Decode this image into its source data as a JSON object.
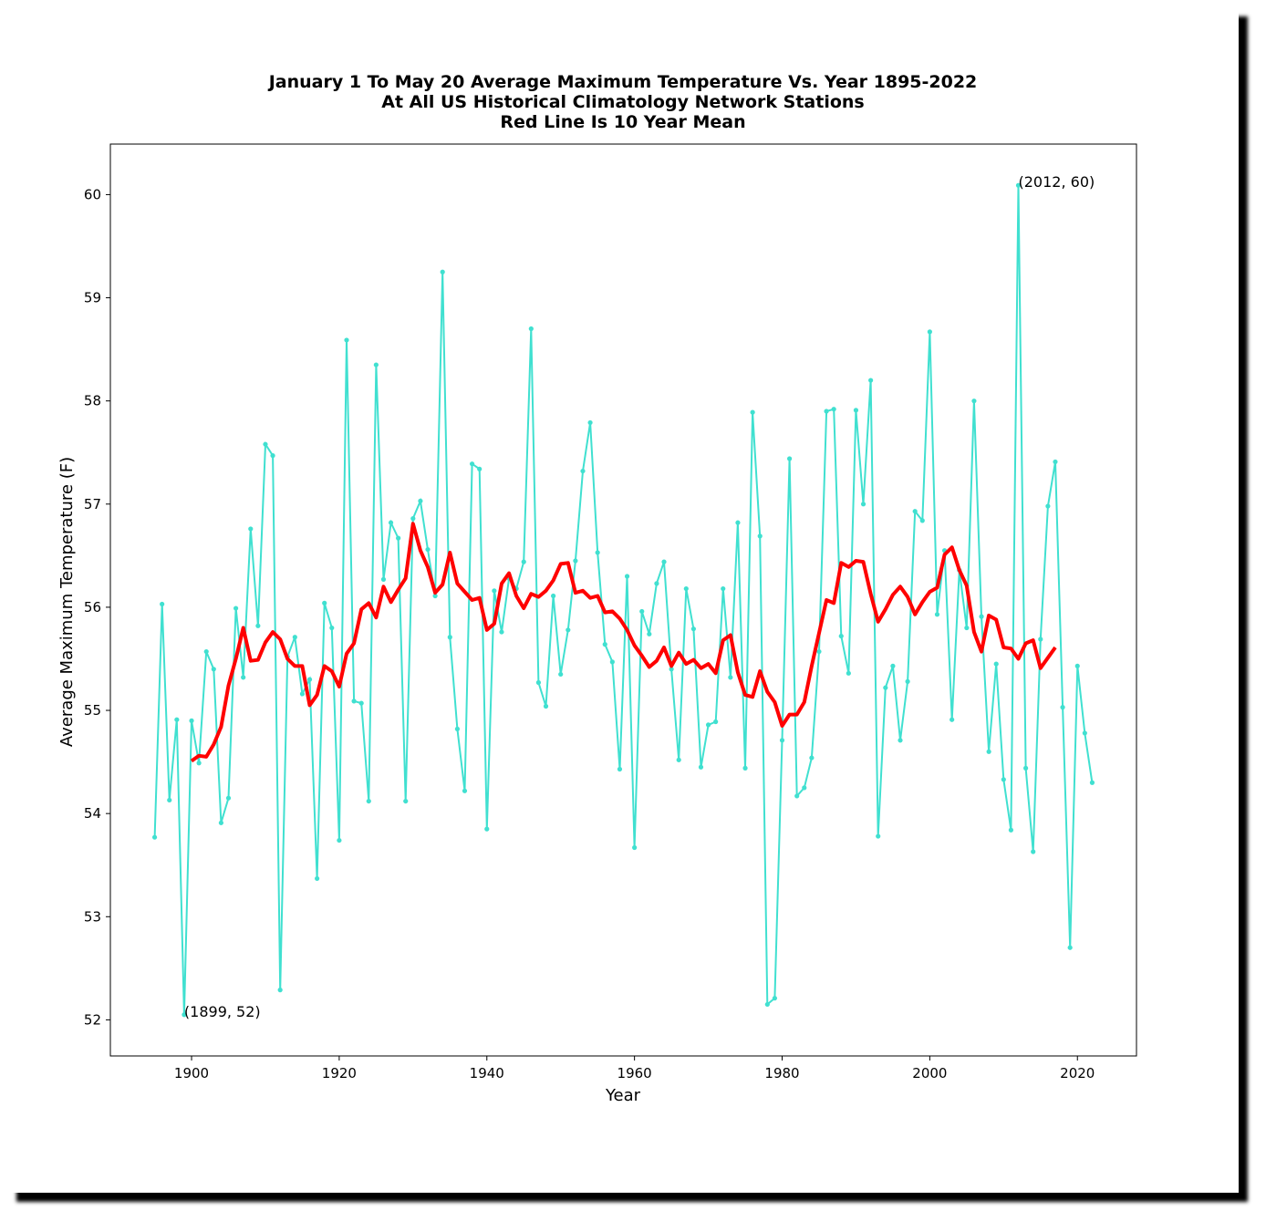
{
  "chart_data": {
    "type": "line",
    "title": [
      "January 1 To May 20 Average Maximum Temperature Vs. Year 1895-2022",
      "At All US Historical Climatology Network Stations",
      "Red Line Is 10 Year Mean"
    ],
    "xlabel": "Year",
    "ylabel": "Average Maximum Temperature (F)",
    "xlim": [
      1889,
      2028
    ],
    "ylim": [
      51.65,
      60.49
    ],
    "xticks": [
      1900,
      1920,
      1940,
      1960,
      1980,
      2000,
      2020
    ],
    "yticks": [
      52,
      53,
      54,
      55,
      56,
      57,
      58,
      59,
      60
    ],
    "grid": false,
    "colors": {
      "annual": "#40e0d0",
      "mean": "#ff0000"
    },
    "series": [
      {
        "values": [
          [
            1895,
            53.77
          ],
          [
            1896,
            56.03
          ],
          [
            1897,
            54.13
          ],
          [
            1898,
            54.91
          ],
          [
            1899,
            52.05
          ],
          [
            1900,
            54.9
          ],
          [
            1901,
            54.49
          ],
          [
            1902,
            55.57
          ],
          [
            1903,
            55.4
          ],
          [
            1904,
            53.91
          ],
          [
            1905,
            54.15
          ],
          [
            1906,
            55.99
          ],
          [
            1907,
            55.32
          ],
          [
            1908,
            56.76
          ],
          [
            1909,
            55.82
          ],
          [
            1910,
            57.58
          ],
          [
            1911,
            57.47
          ],
          [
            1912,
            52.29
          ],
          [
            1913,
            55.52
          ],
          [
            1914,
            55.71
          ],
          [
            1915,
            55.16
          ],
          [
            1916,
            55.3
          ],
          [
            1917,
            53.37
          ],
          [
            1918,
            56.04
          ],
          [
            1919,
            55.8
          ],
          [
            1920,
            53.74
          ],
          [
            1921,
            58.59
          ],
          [
            1922,
            55.09
          ],
          [
            1923,
            55.07
          ],
          [
            1924,
            54.12
          ],
          [
            1925,
            58.35
          ],
          [
            1926,
            56.27
          ],
          [
            1927,
            56.82
          ],
          [
            1928,
            56.67
          ],
          [
            1929,
            54.12
          ],
          [
            1930,
            56.86
          ],
          [
            1931,
            57.03
          ],
          [
            1932,
            56.56
          ],
          [
            1933,
            56.11
          ],
          [
            1934,
            59.25
          ],
          [
            1935,
            55.71
          ],
          [
            1936,
            54.82
          ],
          [
            1937,
            54.22
          ],
          [
            1938,
            57.39
          ],
          [
            1939,
            57.34
          ],
          [
            1940,
            53.85
          ],
          [
            1941,
            56.16
          ],
          [
            1942,
            55.76
          ],
          [
            1943,
            56.28
          ],
          [
            1944,
            56.18
          ],
          [
            1945,
            56.44
          ],
          [
            1946,
            58.7
          ],
          [
            1947,
            55.27
          ],
          [
            1948,
            55.04
          ],
          [
            1949,
            56.11
          ],
          [
            1950,
            55.35
          ],
          [
            1951,
            55.78
          ],
          [
            1952,
            56.45
          ],
          [
            1953,
            57.32
          ],
          [
            1954,
            57.79
          ],
          [
            1955,
            56.53
          ],
          [
            1956,
            55.64
          ],
          [
            1957,
            55.47
          ],
          [
            1958,
            54.43
          ],
          [
            1959,
            56.3
          ],
          [
            1960,
            53.67
          ],
          [
            1961,
            55.96
          ],
          [
            1962,
            55.74
          ],
          [
            1963,
            56.23
          ],
          [
            1964,
            56.44
          ],
          [
            1965,
            55.4
          ],
          [
            1966,
            54.52
          ],
          [
            1967,
            56.18
          ],
          [
            1968,
            55.79
          ],
          [
            1969,
            54.45
          ],
          [
            1970,
            54.86
          ],
          [
            1971,
            54.89
          ],
          [
            1972,
            56.18
          ],
          [
            1973,
            55.32
          ],
          [
            1974,
            56.82
          ],
          [
            1975,
            54.44
          ],
          [
            1976,
            57.89
          ],
          [
            1977,
            56.69
          ],
          [
            1978,
            52.15
          ],
          [
            1979,
            52.21
          ],
          [
            1980,
            54.71
          ],
          [
            1981,
            57.44
          ],
          [
            1982,
            54.17
          ],
          [
            1983,
            54.25
          ],
          [
            1984,
            54.54
          ],
          [
            1985,
            55.57
          ],
          [
            1986,
            57.9
          ],
          [
            1987,
            57.92
          ],
          [
            1988,
            55.72
          ],
          [
            1989,
            55.36
          ],
          [
            1990,
            57.91
          ],
          [
            1991,
            57.0
          ],
          [
            1992,
            58.2
          ],
          [
            1993,
            53.78
          ],
          [
            1994,
            55.22
          ],
          [
            1995,
            55.43
          ],
          [
            1996,
            54.71
          ],
          [
            1997,
            55.28
          ],
          [
            1998,
            56.93
          ],
          [
            1999,
            56.84
          ],
          [
            2000,
            58.67
          ],
          [
            2001,
            55.93
          ],
          [
            2002,
            56.55
          ],
          [
            2003,
            54.91
          ],
          [
            2004,
            56.36
          ],
          [
            2005,
            55.8
          ],
          [
            2006,
            58.0
          ],
          [
            2007,
            55.91
          ],
          [
            2008,
            54.6
          ],
          [
            2009,
            55.45
          ],
          [
            2010,
            54.33
          ],
          [
            2011,
            53.84
          ],
          [
            2012,
            60.09
          ],
          [
            2013,
            54.44
          ],
          [
            2014,
            53.63
          ],
          [
            2015,
            55.69
          ],
          [
            2016,
            56.98
          ],
          [
            2017,
            57.41
          ],
          [
            2018,
            55.03
          ],
          [
            2019,
            52.7
          ],
          [
            2020,
            55.43
          ],
          [
            2021,
            54.78
          ],
          [
            2022,
            54.3
          ]
        ]
      },
      {
        "values": [
          [
            1900,
            54.51
          ],
          [
            1901,
            54.56
          ],
          [
            1902,
            54.55
          ],
          [
            1903,
            54.67
          ],
          [
            1904,
            54.84
          ],
          [
            1905,
            55.24
          ],
          [
            1906,
            55.5
          ],
          [
            1907,
            55.8
          ],
          [
            1908,
            55.48
          ],
          [
            1909,
            55.49
          ],
          [
            1910,
            55.66
          ],
          [
            1911,
            55.76
          ],
          [
            1912,
            55.69
          ],
          [
            1913,
            55.5
          ],
          [
            1914,
            55.43
          ],
          [
            1915,
            55.43
          ],
          [
            1916,
            55.05
          ],
          [
            1917,
            55.15
          ],
          [
            1918,
            55.43
          ],
          [
            1919,
            55.38
          ],
          [
            1920,
            55.23
          ],
          [
            1921,
            55.55
          ],
          [
            1922,
            55.65
          ],
          [
            1923,
            55.98
          ],
          [
            1924,
            56.04
          ],
          [
            1925,
            55.9
          ],
          [
            1926,
            56.2
          ],
          [
            1927,
            56.05
          ],
          [
            1928,
            56.17
          ],
          [
            1929,
            56.28
          ],
          [
            1930,
            56.81
          ],
          [
            1931,
            56.55
          ],
          [
            1932,
            56.39
          ],
          [
            1933,
            56.14
          ],
          [
            1934,
            56.22
          ],
          [
            1935,
            56.53
          ],
          [
            1936,
            56.23
          ],
          [
            1937,
            56.15
          ],
          [
            1938,
            56.07
          ],
          [
            1939,
            56.09
          ],
          [
            1940,
            55.78
          ],
          [
            1941,
            55.84
          ],
          [
            1942,
            56.23
          ],
          [
            1943,
            56.33
          ],
          [
            1944,
            56.11
          ],
          [
            1945,
            55.99
          ],
          [
            1946,
            56.13
          ],
          [
            1947,
            56.1
          ],
          [
            1948,
            56.16
          ],
          [
            1949,
            56.26
          ],
          [
            1950,
            56.42
          ],
          [
            1951,
            56.43
          ],
          [
            1952,
            56.14
          ],
          [
            1953,
            56.16
          ],
          [
            1954,
            56.09
          ],
          [
            1955,
            56.11
          ],
          [
            1956,
            55.95
          ],
          [
            1957,
            55.96
          ],
          [
            1958,
            55.89
          ],
          [
            1959,
            55.78
          ],
          [
            1960,
            55.63
          ],
          [
            1961,
            55.53
          ],
          [
            1962,
            55.42
          ],
          [
            1963,
            55.48
          ],
          [
            1964,
            55.61
          ],
          [
            1965,
            55.43
          ],
          [
            1966,
            55.56
          ],
          [
            1967,
            55.45
          ],
          [
            1968,
            55.49
          ],
          [
            1969,
            55.41
          ],
          [
            1970,
            55.45
          ],
          [
            1971,
            55.36
          ],
          [
            1972,
            55.68
          ],
          [
            1973,
            55.73
          ],
          [
            1974,
            55.37
          ],
          [
            1975,
            55.15
          ],
          [
            1976,
            55.13
          ],
          [
            1977,
            55.38
          ],
          [
            1978,
            55.18
          ],
          [
            1979,
            55.08
          ],
          [
            1980,
            54.85
          ],
          [
            1981,
            54.96
          ],
          [
            1982,
            54.96
          ],
          [
            1983,
            55.08
          ],
          [
            1984,
            55.43
          ],
          [
            1985,
            55.75
          ],
          [
            1986,
            56.07
          ],
          [
            1987,
            56.04
          ],
          [
            1988,
            56.43
          ],
          [
            1989,
            56.39
          ],
          [
            1990,
            56.45
          ],
          [
            1991,
            56.44
          ],
          [
            1992,
            56.13
          ],
          [
            1993,
            55.86
          ],
          [
            1994,
            55.98
          ],
          [
            1995,
            56.12
          ],
          [
            1996,
            56.2
          ],
          [
            1997,
            56.1
          ],
          [
            1998,
            55.93
          ],
          [
            1999,
            56.05
          ],
          [
            2000,
            56.15
          ],
          [
            2001,
            56.19
          ],
          [
            2002,
            56.51
          ],
          [
            2003,
            56.58
          ],
          [
            2004,
            56.36
          ],
          [
            2005,
            56.21
          ],
          [
            2006,
            55.76
          ],
          [
            2007,
            55.57
          ],
          [
            2008,
            55.92
          ],
          [
            2009,
            55.88
          ],
          [
            2010,
            55.61
          ],
          [
            2011,
            55.6
          ],
          [
            2012,
            55.5
          ],
          [
            2013,
            55.65
          ],
          [
            2014,
            55.68
          ],
          [
            2015,
            55.41
          ],
          [
            2016,
            55.51
          ],
          [
            2017,
            55.61
          ]
        ]
      }
    ],
    "annotations": [
      {
        "text": "(1899, 52)",
        "x": 1899,
        "y": 52.05
      },
      {
        "text": "(2012, 60)",
        "x": 2012,
        "y": 60.09
      }
    ]
  }
}
